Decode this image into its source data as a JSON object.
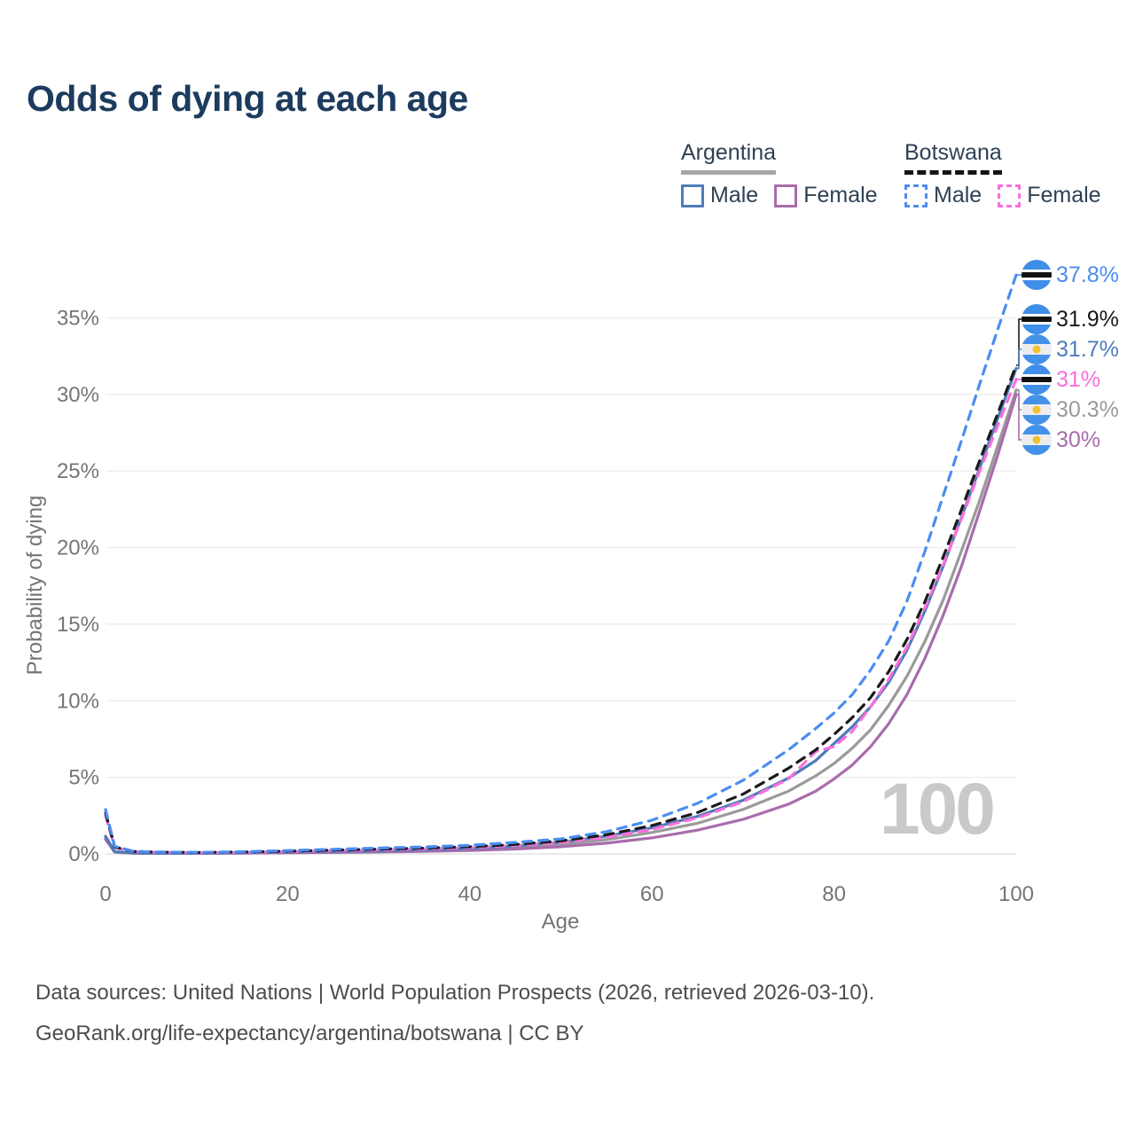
{
  "title": "Odds of dying at each age",
  "legend": {
    "countries": [
      {
        "name": "Argentina",
        "underline": "solid",
        "underline_color": "#a6a6a6",
        "entries": [
          {
            "label": "Male",
            "color": "#4e7cb8",
            "style": "solid"
          },
          {
            "label": "Female",
            "color": "#a96cac",
            "style": "solid"
          }
        ]
      },
      {
        "name": "Botswana",
        "underline": "dashed",
        "underline_color": "#141414",
        "entries": [
          {
            "label": "Male",
            "color": "#4b8df0",
            "style": "dashed"
          },
          {
            "label": "Female",
            "color": "#fb6edb",
            "style": "dashed"
          }
        ]
      }
    ]
  },
  "chart_data": {
    "type": "line",
    "title": "Odds of dying at each age",
    "xlabel": "Age",
    "ylabel": "Probability of dying",
    "xlim": [
      0,
      100
    ],
    "ylim_percent": [
      0,
      38
    ],
    "x_ticks": [
      0,
      20,
      40,
      60,
      80,
      100
    ],
    "y_ticks_percent": [
      0,
      5,
      10,
      15,
      20,
      25,
      30,
      35
    ],
    "grid": true,
    "legend_position": "top-right",
    "ages": [
      0,
      1,
      3,
      5,
      10,
      15,
      20,
      25,
      30,
      35,
      40,
      45,
      50,
      55,
      60,
      65,
      70,
      75,
      78,
      80,
      82,
      84,
      86,
      88,
      90,
      92,
      94,
      96,
      98,
      100
    ],
    "series": [
      {
        "name": "Argentina",
        "color": "#9a9a9a",
        "dash": "solid",
        "flag": "argentina",
        "end_label": "30.3%",
        "values": [
          1.05,
          0.13,
          0.05,
          0.045,
          0.04,
          0.06,
          0.1,
          0.13,
          0.16,
          0.22,
          0.3,
          0.43,
          0.62,
          0.93,
          1.4,
          2.0,
          2.9,
          4.1,
          5.1,
          5.9,
          6.9,
          8.1,
          9.7,
          11.6,
          13.9,
          16.6,
          19.8,
          23.1,
          26.7,
          30.3
        ]
      },
      {
        "name": "Argentina Female",
        "color": "#a96cac",
        "dash": "solid",
        "flag": "argentina",
        "end_label": "30%",
        "values": [
          0.95,
          0.12,
          0.05,
          0.04,
          0.035,
          0.05,
          0.07,
          0.1,
          0.13,
          0.17,
          0.22,
          0.32,
          0.47,
          0.7,
          1.05,
          1.55,
          2.25,
          3.25,
          4.1,
          4.9,
          5.8,
          7.0,
          8.5,
          10.4,
          12.8,
          15.6,
          18.8,
          22.4,
          26.1,
          30.0
        ]
      },
      {
        "name": "Argentina Male",
        "color": "#4e7cb8",
        "dash": "solid",
        "flag": "argentina",
        "end_label": "31.7%",
        "values": [
          1.15,
          0.15,
          0.06,
          0.05,
          0.05,
          0.08,
          0.12,
          0.16,
          0.2,
          0.27,
          0.36,
          0.52,
          0.77,
          1.15,
          1.7,
          2.45,
          3.5,
          4.95,
          6.1,
          7.2,
          8.3,
          9.6,
          11.2,
          13.3,
          15.9,
          18.8,
          22.0,
          25.2,
          28.5,
          31.7
        ]
      },
      {
        "name": "Botswana Female",
        "color": "#fb6edb",
        "dash": "dashed",
        "flag": "botswana",
        "end_label": "31%",
        "values": [
          2.5,
          0.42,
          0.15,
          0.11,
          0.08,
          0.1,
          0.15,
          0.21,
          0.26,
          0.33,
          0.41,
          0.55,
          0.75,
          1.08,
          1.6,
          2.35,
          3.4,
          4.9,
          6.7,
          7.0,
          8.0,
          9.6,
          11.4,
          13.5,
          16.1,
          18.9,
          21.9,
          25.0,
          28.0,
          31.0
        ]
      },
      {
        "name": "Botswana",
        "color": "#1a1a1a",
        "dash": "dashed",
        "flag": "botswana",
        "end_label": "31.9%",
        "values": [
          2.7,
          0.45,
          0.16,
          0.12,
          0.09,
          0.12,
          0.18,
          0.25,
          0.31,
          0.38,
          0.47,
          0.62,
          0.85,
          1.25,
          1.85,
          2.7,
          3.9,
          5.6,
          6.8,
          7.8,
          8.9,
          10.2,
          11.9,
          14.0,
          16.5,
          19.4,
          22.5,
          25.7,
          28.8,
          31.9
        ]
      },
      {
        "name": "Botswana Male",
        "color": "#4b8df0",
        "dash": "dashed",
        "flag": "botswana",
        "end_label": "37.8%",
        "values": [
          2.9,
          0.5,
          0.18,
          0.13,
          0.1,
          0.14,
          0.22,
          0.3,
          0.38,
          0.46,
          0.56,
          0.75,
          0.98,
          1.45,
          2.2,
          3.3,
          4.8,
          6.8,
          8.2,
          9.2,
          10.4,
          12.0,
          13.9,
          16.5,
          19.8,
          23.4,
          27.0,
          30.7,
          34.3,
          37.8
        ]
      }
    ]
  },
  "watermark": "100",
  "footer": {
    "line1": "Data sources: United Nations | World Population Prospects (2026, retrieved 2026-03-10).",
    "line2": "GeoRank.org/life-expectancy/argentina/botswana | CC BY"
  }
}
